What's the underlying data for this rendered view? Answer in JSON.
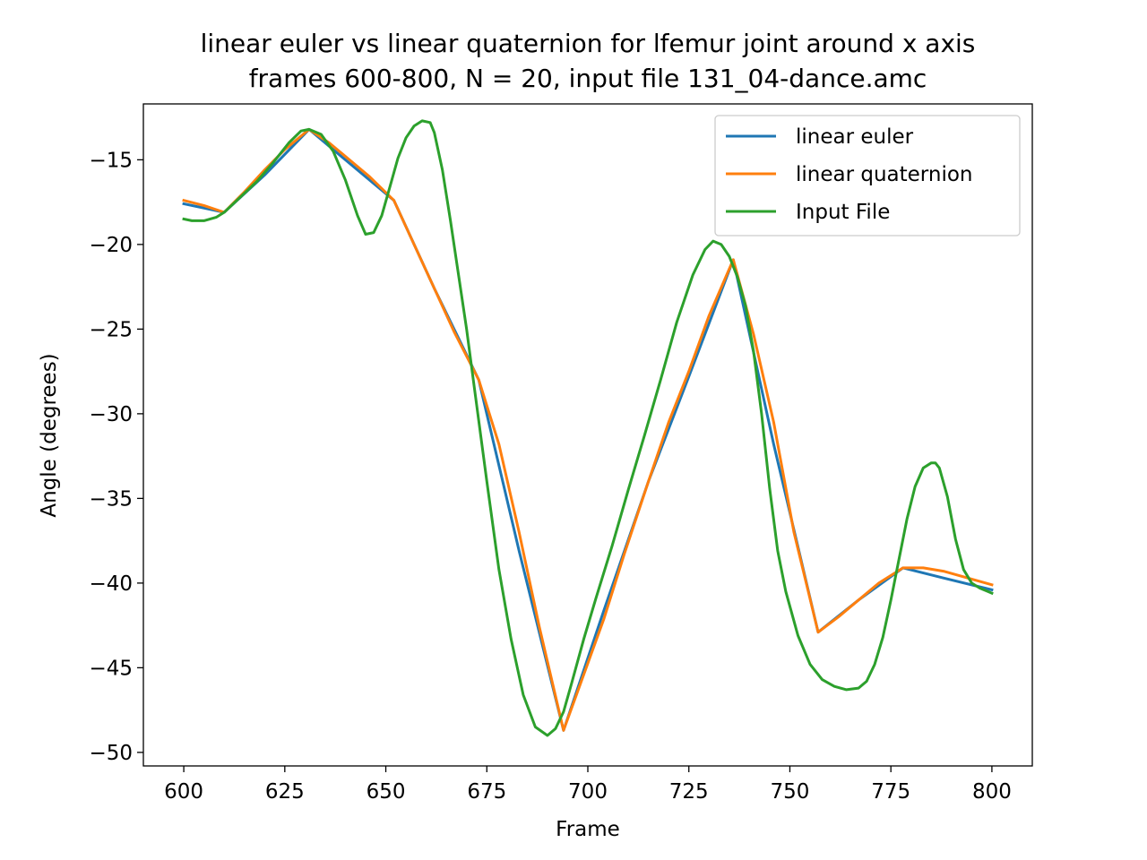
{
  "chart_data": {
    "type": "line",
    "title": "linear euler vs linear quaternion for lfemur joint around x axis",
    "subtitle": "frames 600-800, N = 20, input file 131_04-dance.amc",
    "xlabel": "Frame",
    "ylabel": "Angle (degrees)",
    "xlim": [
      590,
      810
    ],
    "ylim": [
      -50.8,
      -11.7
    ],
    "xticks": [
      600,
      625,
      650,
      675,
      700,
      725,
      750,
      775,
      800
    ],
    "yticks": [
      -15,
      -20,
      -25,
      -30,
      -35,
      -40,
      -45,
      -50
    ],
    "grid": false,
    "legend_position": "top-right",
    "series": [
      {
        "name": "linear euler",
        "color": "#1f77b4",
        "x": [
          600,
          610,
          620,
          631,
          641,
          652,
          662,
          673,
          683,
          694,
          704,
          715,
          725,
          736,
          746,
          757,
          767,
          778,
          788,
          800
        ],
        "y": [
          -17.6,
          -18.1,
          -15.9,
          -13.2,
          -15.2,
          -17.4,
          -22.6,
          -28.0,
          -38.1,
          -48.7,
          -41.6,
          -34.0,
          -27.8,
          -20.9,
          -31.8,
          -42.9,
          -41.0,
          -39.1,
          -39.7,
          -40.4
        ]
      },
      {
        "name": "linear quaternion",
        "color": "#ff7f0e",
        "x": [
          600,
          605,
          610,
          615,
          620,
          625,
          631,
          636,
          641,
          646,
          652,
          657,
          662,
          667,
          673,
          678,
          683,
          688,
          694,
          699,
          704,
          709,
          715,
          720,
          725,
          730,
          736,
          741,
          746,
          751,
          757,
          762,
          767,
          772,
          778,
          783,
          788,
          794,
          800
        ],
        "y": [
          -17.4,
          -17.7,
          -18.1,
          -16.9,
          -15.6,
          -14.4,
          -13.2,
          -14.0,
          -15.0,
          -16.0,
          -17.4,
          -20.0,
          -22.6,
          -25.2,
          -28.0,
          -31.8,
          -37.0,
          -42.6,
          -48.7,
          -45.4,
          -42.1,
          -38.3,
          -34.0,
          -30.5,
          -27.5,
          -24.2,
          -20.9,
          -25.3,
          -30.5,
          -37.0,
          -42.9,
          -42.0,
          -41.0,
          -40.0,
          -39.1,
          -39.1,
          -39.3,
          -39.7,
          -40.1
        ]
      },
      {
        "name": "Input File",
        "color": "#2ca02c",
        "x": [
          600,
          602,
          605,
          608,
          610,
          614,
          618,
          622,
          626,
          629,
          631,
          634,
          637,
          640,
          643,
          645,
          647,
          649,
          651,
          653,
          655,
          657,
          659,
          661,
          662,
          664,
          666,
          668,
          670,
          672,
          675,
          678,
          681,
          684,
          687,
          690,
          692,
          694,
          696,
          699,
          702,
          706,
          710,
          714,
          718,
          722,
          726,
          729,
          731,
          733,
          735,
          737,
          739,
          741,
          743,
          745,
          747,
          749,
          752,
          755,
          758,
          761,
          764,
          767,
          769,
          771,
          773,
          775,
          777,
          779,
          781,
          783,
          785,
          786,
          787,
          789,
          791,
          793,
          795,
          797,
          799,
          800
        ],
        "y": [
          -18.5,
          -18.6,
          -18.6,
          -18.4,
          -18.1,
          -17.2,
          -16.3,
          -15.2,
          -14.0,
          -13.3,
          -13.2,
          -13.5,
          -14.5,
          -16.2,
          -18.3,
          -19.4,
          -19.3,
          -18.3,
          -16.6,
          -14.9,
          -13.7,
          -13.0,
          -12.7,
          -12.8,
          -13.4,
          -15.6,
          -18.6,
          -21.8,
          -25.0,
          -28.6,
          -34.0,
          -39.2,
          -43.3,
          -46.6,
          -48.5,
          -49.0,
          -48.6,
          -47.6,
          -45.9,
          -43.3,
          -40.9,
          -37.8,
          -34.5,
          -31.3,
          -28.0,
          -24.6,
          -21.8,
          -20.3,
          -19.8,
          -20.0,
          -20.7,
          -21.9,
          -23.6,
          -26.3,
          -30.0,
          -34.4,
          -38.1,
          -40.5,
          -43.1,
          -44.8,
          -45.7,
          -46.1,
          -46.3,
          -46.2,
          -45.8,
          -44.8,
          -43.2,
          -41.0,
          -38.6,
          -36.2,
          -34.3,
          -33.2,
          -32.9,
          -32.9,
          -33.2,
          -34.9,
          -37.4,
          -39.2,
          -40.0,
          -40.3,
          -40.5,
          -40.6
        ]
      }
    ]
  }
}
